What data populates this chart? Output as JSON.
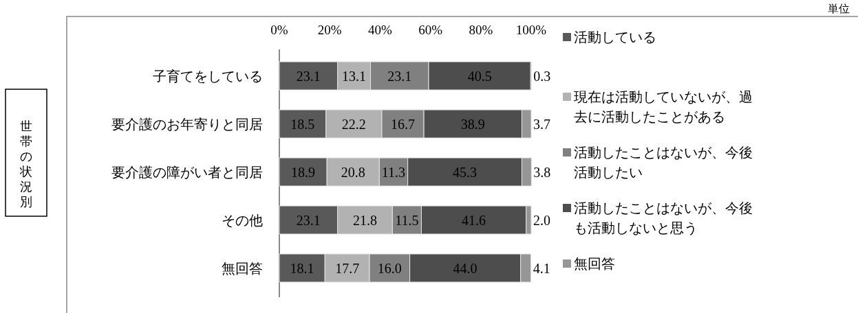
{
  "chart_data": {
    "type": "bar",
    "orientation": "horizontal",
    "stacked": true,
    "legend": "right",
    "grid": false,
    "annotations": [
      "世帯の状況別",
      "単位"
    ],
    "categories": [
      "子育てをしている",
      "要介護のお年寄りと同居",
      "要介護の障がい者と同居",
      "その他",
      "無回答"
    ],
    "xlim": [
      0,
      100
    ],
    "xticks": [
      {
        "value": 0,
        "label": "0%"
      },
      {
        "value": 20,
        "label": "20%"
      },
      {
        "value": 40,
        "label": "40%"
      },
      {
        "value": 60,
        "label": "60%"
      },
      {
        "value": 80,
        "label": "80%"
      },
      {
        "value": 100,
        "label": "100%"
      }
    ],
    "series": [
      {
        "name": "活動している",
        "color": "#595959",
        "values": [
          23.1,
          18.5,
          18.9,
          23.1,
          18.1
        ],
        "value_labels": [
          "23.1",
          "18.5",
          "18.9",
          "23.1",
          "18.1"
        ]
      },
      {
        "name": "現在は活動していないが、過去に活動したことがある",
        "color": "#b2b2b2",
        "values": [
          13.1,
          22.2,
          20.8,
          21.8,
          17.7
        ],
        "value_labels": [
          "13.1",
          "22.2",
          "20.8",
          "21.8",
          "17.7"
        ]
      },
      {
        "name": "活動したことはないが、今後活動したい",
        "color": "#808080",
        "values": [
          23.1,
          16.7,
          11.3,
          11.5,
          16.0
        ],
        "value_labels": [
          "23.1",
          "16.7",
          "11.3",
          "11.5",
          "16.0"
        ]
      },
      {
        "name": "活動したことはないが、今後も活動しないと思う",
        "color": "#4d4d4d",
        "values": [
          40.5,
          38.9,
          45.3,
          41.6,
          44.0
        ],
        "value_labels": [
          "40.5",
          "38.9",
          "45.3",
          "41.6",
          "44.0"
        ]
      },
      {
        "name": "無回答",
        "color": "#969696",
        "values": [
          0.3,
          3.7,
          3.8,
          2.0,
          4.1
        ],
        "value_labels": [
          "0.3",
          "3.7",
          "3.8",
          "2.0",
          "4.1"
        ]
      }
    ]
  }
}
